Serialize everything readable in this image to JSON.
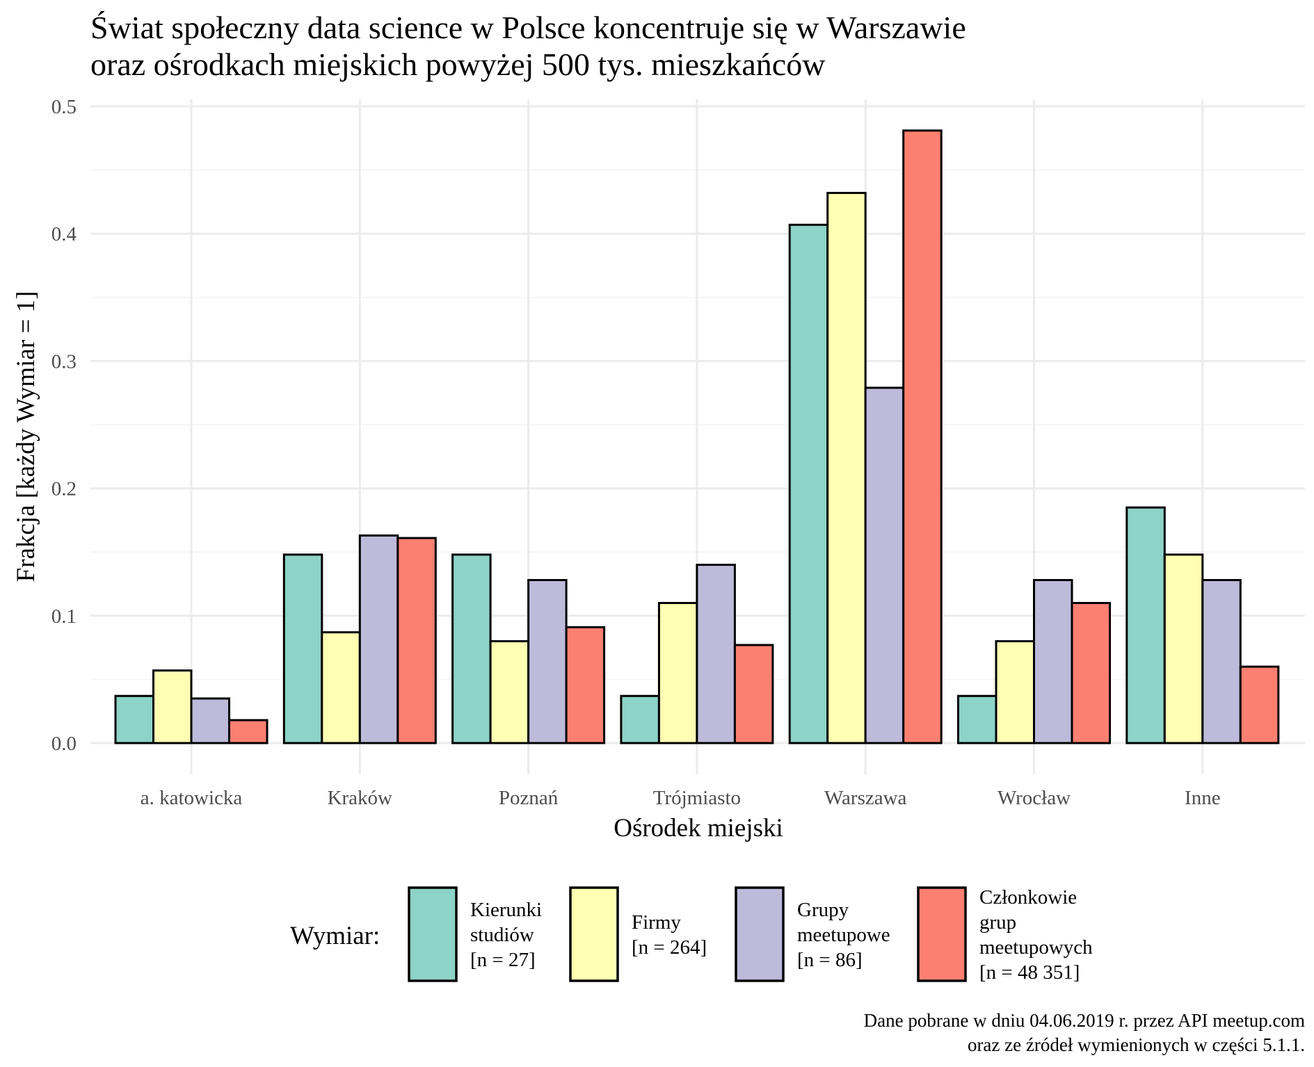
{
  "chart_data": {
    "type": "bar",
    "title_lines": [
      "Świat społeczny data science w Polsce koncentruje się w Warszawie",
      "oraz ośrodkach miejskich powyżej 500 tys. mieszkańców"
    ],
    "xlabel": "Ośrodek miejski",
    "ylabel": "Frakcja [każdy Wymiar = 1]",
    "ylim": [
      0,
      0.5
    ],
    "yticks": [
      "0.0",
      "0.1",
      "0.2",
      "0.3",
      "0.4",
      "0.5"
    ],
    "ytick_values": [
      0,
      0.1,
      0.2,
      0.3,
      0.4,
      0.5
    ],
    "categories": [
      "a. katowicka",
      "Kraków",
      "Poznań",
      "Trójmiasto",
      "Warszawa",
      "Wrocław",
      "Inne"
    ],
    "series": [
      {
        "name": "Kierunki studiów [n = 27]",
        "legend_lines": [
          "Kierunki",
          "studiów",
          "[n = 27]"
        ],
        "color": "#8DD3C7",
        "values": [
          0.037,
          0.148,
          0.148,
          0.037,
          0.407,
          0.037,
          0.185
        ]
      },
      {
        "name": "Firmy [n = 264]",
        "legend_lines": [
          "Firmy",
          "[n = 264]"
        ],
        "color": "#FFFFB3",
        "values": [
          0.057,
          0.087,
          0.08,
          0.11,
          0.432,
          0.08,
          0.148
        ]
      },
      {
        "name": "Grupy meetupowe [n = 86]",
        "legend_lines": [
          "Grupy",
          "meetupowe",
          "[n = 86]"
        ],
        "color": "#BEBADA",
        "values": [
          0.035,
          0.163,
          0.128,
          0.14,
          0.279,
          0.128,
          0.128
        ]
      },
      {
        "name": "Członkowie grup meetupowych [n = 48 351]",
        "legend_lines": [
          "Członkowie",
          "grup",
          "meetupowych",
          "[n = 48 351]"
        ],
        "color": "#FB8072",
        "values": [
          0.018,
          0.161,
          0.091,
          0.077,
          0.481,
          0.11,
          0.06
        ]
      }
    ],
    "grid": true,
    "legend_title": "Wymiar:",
    "legend_position": "bottom",
    "caption_lines": [
      "Dane pobrane w dniu 04.06.2019 r. przez API meetup.com",
      "oraz ze źródeł wymienionych w części 5.1.1."
    ]
  }
}
